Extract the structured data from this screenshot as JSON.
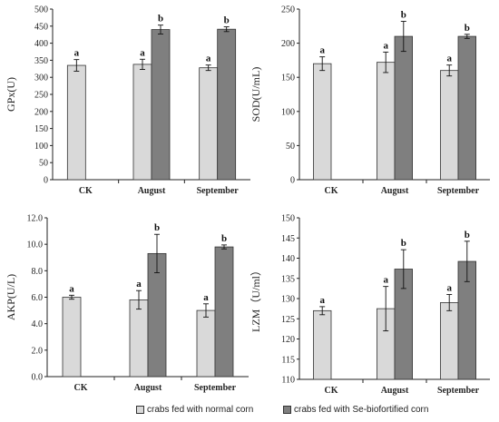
{
  "colors": {
    "normal": "#d9d9d9",
    "se": "#7f7f7f",
    "edge": "#333333",
    "axis": "#222222"
  },
  "legend": {
    "normal": "crabs fed with normal corn",
    "se": "crabs fed with Se-biofortified corn"
  },
  "chart_data": [
    {
      "type": "bar",
      "categories": [
        "CK",
        "August",
        "September"
      ],
      "ylabel": "GPx(U)",
      "ylim": [
        0,
        500
      ],
      "yticks": [
        "0",
        "50",
        "100",
        "150",
        "200",
        "250",
        "300",
        "350",
        "400",
        "450",
        "500"
      ],
      "series": [
        {
          "name": "crabs fed with normal corn",
          "values": [
            335,
            338,
            328
          ],
          "errors": [
            17,
            15,
            8
          ],
          "labels": [
            "a",
            "a",
            "a"
          ]
        },
        {
          "name": "crabs fed with Se-biofortified corn",
          "values": [
            null,
            440,
            441
          ],
          "errors": [
            null,
            13,
            7
          ],
          "labels": [
            null,
            "b",
            "b"
          ]
        }
      ]
    },
    {
      "type": "bar",
      "categories": [
        "CK",
        "August",
        "September"
      ],
      "ylabel": "SOD(U/mL)",
      "ylim": [
        0,
        250
      ],
      "yticks": [
        "0",
        "50",
        "100",
        "150",
        "200",
        "250"
      ],
      "series": [
        {
          "name": "crabs fed with normal corn",
          "values": [
            170,
            172,
            160
          ],
          "errors": [
            10,
            15,
            8
          ],
          "labels": [
            "a",
            "a",
            "a"
          ]
        },
        {
          "name": "crabs fed with Se-biofortified corn",
          "values": [
            null,
            210,
            210
          ],
          "errors": [
            null,
            22,
            3
          ],
          "labels": [
            null,
            "b",
            "b"
          ]
        }
      ]
    },
    {
      "type": "bar",
      "categories": [
        "CK",
        "August",
        "September"
      ],
      "ylabel": "AKP(U/L)",
      "ylim": [
        0,
        12
      ],
      "yticks": [
        "0.0",
        "2.0",
        "4.0",
        "6.0",
        "8.0",
        "10.0",
        "12.0"
      ],
      "series": [
        {
          "name": "crabs fed with normal corn",
          "values": [
            6.0,
            5.8,
            5.0
          ],
          "errors": [
            0.15,
            0.7,
            0.5
          ],
          "labels": [
            "a",
            "a",
            "a"
          ]
        },
        {
          "name": "crabs fed with Se-biofortified corn",
          "values": [
            null,
            9.3,
            9.8
          ],
          "errors": [
            null,
            1.45,
            0.15
          ],
          "labels": [
            null,
            "b",
            "b"
          ]
        }
      ]
    },
    {
      "type": "bar",
      "categories": [
        "CK",
        "August",
        "September"
      ],
      "ylabel": "LZM（U/ml）",
      "ylim": [
        110,
        150
      ],
      "yticks": [
        "110",
        "115",
        "120",
        "125",
        "130",
        "135",
        "140",
        "145",
        "150"
      ],
      "series": [
        {
          "name": "crabs fed with normal corn",
          "values": [
            127,
            127.5,
            129
          ],
          "errors": [
            1,
            5.5,
            2
          ],
          "labels": [
            "a",
            "a",
            "a"
          ]
        },
        {
          "name": "crabs fed with Se-biofortified corn",
          "values": [
            null,
            137.3,
            139.2
          ],
          "errors": [
            null,
            4.8,
            5
          ],
          "labels": [
            null,
            "b",
            "b"
          ]
        }
      ]
    }
  ]
}
